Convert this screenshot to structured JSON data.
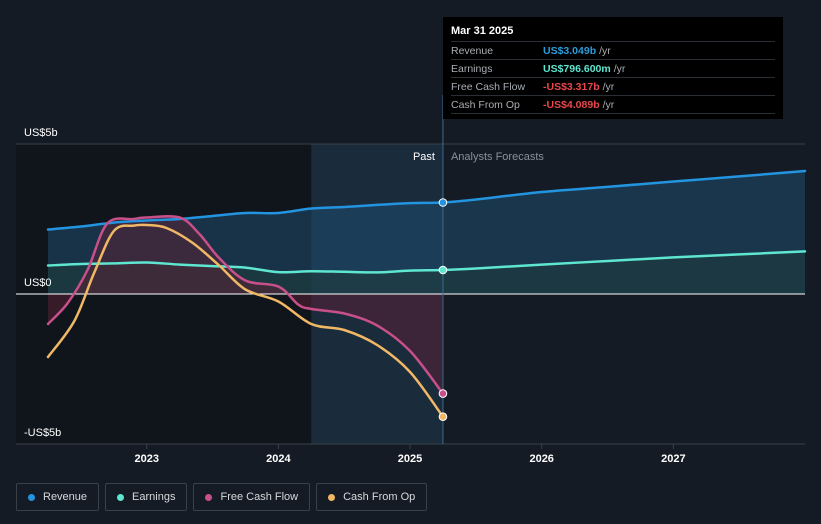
{
  "tooltip": {
    "date": "Mar 31 2025",
    "rows": [
      {
        "label": "Revenue",
        "value": "US$3.049b",
        "unit": "/yr",
        "color": "#2d9cdb"
      },
      {
        "label": "Earnings",
        "value": "US$796.600m",
        "unit": "/yr",
        "color": "#5ee6d0"
      },
      {
        "label": "Free Cash Flow",
        "value": "-US$3.317b",
        "unit": "/yr",
        "color": "#e8474c"
      },
      {
        "label": "Cash From Op",
        "value": "-US$4.089b",
        "unit": "/yr",
        "color": "#e8474c"
      }
    ]
  },
  "legend": [
    {
      "label": "Revenue",
      "color": "#2394df"
    },
    {
      "label": "Earnings",
      "color": "#5ee6d0"
    },
    {
      "label": "Free Cash Flow",
      "color": "#c8508a"
    },
    {
      "label": "Cash From Op",
      "color": "#f0b866"
    }
  ],
  "chart_data": {
    "type": "line",
    "y_axis_labels": [
      "US$5b",
      "US$0",
      "-US$5b"
    ],
    "x_tick_labels": [
      "2023",
      "2024",
      "2025",
      "2026",
      "2027"
    ],
    "x_ticks": [
      2023.0,
      2024.0,
      2025.0,
      2026.0,
      2027.0
    ],
    "xlim": [
      2022.25,
      2028.0
    ],
    "ylim": [
      -5,
      5
    ],
    "past_label": "Past",
    "forecast_label": "Analysts Forecasts",
    "past_end": 2025.25,
    "highlight_start": 2024.25,
    "grid": false,
    "series": [
      {
        "name": "Revenue",
        "color": "#2394df",
        "fill": "#1f4d6d",
        "points": [
          [
            2022.25,
            2.15
          ],
          [
            2022.5,
            2.25
          ],
          [
            2022.75,
            2.38
          ],
          [
            2023.0,
            2.45
          ],
          [
            2023.25,
            2.5
          ],
          [
            2023.5,
            2.6
          ],
          [
            2023.75,
            2.7
          ],
          [
            2024.0,
            2.7
          ],
          [
            2024.25,
            2.85
          ],
          [
            2024.5,
            2.9
          ],
          [
            2024.75,
            2.97
          ],
          [
            2025.0,
            3.03
          ],
          [
            2025.25,
            3.05
          ],
          [
            2025.5,
            3.15
          ],
          [
            2026.0,
            3.4
          ],
          [
            2026.5,
            3.57
          ],
          [
            2027.0,
            3.75
          ],
          [
            2027.5,
            3.92
          ],
          [
            2028.0,
            4.1
          ]
        ]
      },
      {
        "name": "Earnings",
        "color": "#5ee6d0",
        "fill": "#1f3d3d",
        "points": [
          [
            2022.25,
            0.95
          ],
          [
            2022.5,
            1.0
          ],
          [
            2022.75,
            1.02
          ],
          [
            2023.0,
            1.05
          ],
          [
            2023.25,
            0.98
          ],
          [
            2023.5,
            0.93
          ],
          [
            2023.75,
            0.88
          ],
          [
            2024.0,
            0.73
          ],
          [
            2024.25,
            0.76
          ],
          [
            2024.5,
            0.74
          ],
          [
            2024.75,
            0.72
          ],
          [
            2025.0,
            0.78
          ],
          [
            2025.25,
            0.8
          ],
          [
            2025.5,
            0.85
          ],
          [
            2026.0,
            0.98
          ],
          [
            2026.5,
            1.1
          ],
          [
            2027.0,
            1.22
          ],
          [
            2027.5,
            1.32
          ],
          [
            2028.0,
            1.42
          ]
        ]
      },
      {
        "name": "Free Cash Flow",
        "color": "#c8508a",
        "fill": "#5a2035",
        "points": [
          [
            2022.25,
            -1.0
          ],
          [
            2022.4,
            -0.3
          ],
          [
            2022.55,
            0.8
          ],
          [
            2022.7,
            2.35
          ],
          [
            2022.9,
            2.5
          ],
          [
            2023.0,
            2.55
          ],
          [
            2023.25,
            2.55
          ],
          [
            2023.4,
            2.0
          ],
          [
            2023.55,
            1.2
          ],
          [
            2023.75,
            0.45
          ],
          [
            2024.0,
            0.25
          ],
          [
            2024.15,
            -0.35
          ],
          [
            2024.25,
            -0.5
          ],
          [
            2024.5,
            -0.65
          ],
          [
            2024.75,
            -1.05
          ],
          [
            2025.0,
            -1.9
          ],
          [
            2025.25,
            -3.32
          ]
        ]
      },
      {
        "name": "Cash From Op",
        "color": "#f0b866",
        "fill": null,
        "points": [
          [
            2022.25,
            -2.1
          ],
          [
            2022.45,
            -0.9
          ],
          [
            2022.6,
            0.7
          ],
          [
            2022.75,
            2.1
          ],
          [
            2022.9,
            2.28
          ],
          [
            2023.0,
            2.3
          ],
          [
            2023.15,
            2.2
          ],
          [
            2023.35,
            1.7
          ],
          [
            2023.55,
            0.95
          ],
          [
            2023.75,
            0.15
          ],
          [
            2024.0,
            -0.25
          ],
          [
            2024.25,
            -1.0
          ],
          [
            2024.5,
            -1.2
          ],
          [
            2024.75,
            -1.7
          ],
          [
            2025.0,
            -2.6
          ],
          [
            2025.25,
            -4.09
          ]
        ]
      }
    ]
  }
}
